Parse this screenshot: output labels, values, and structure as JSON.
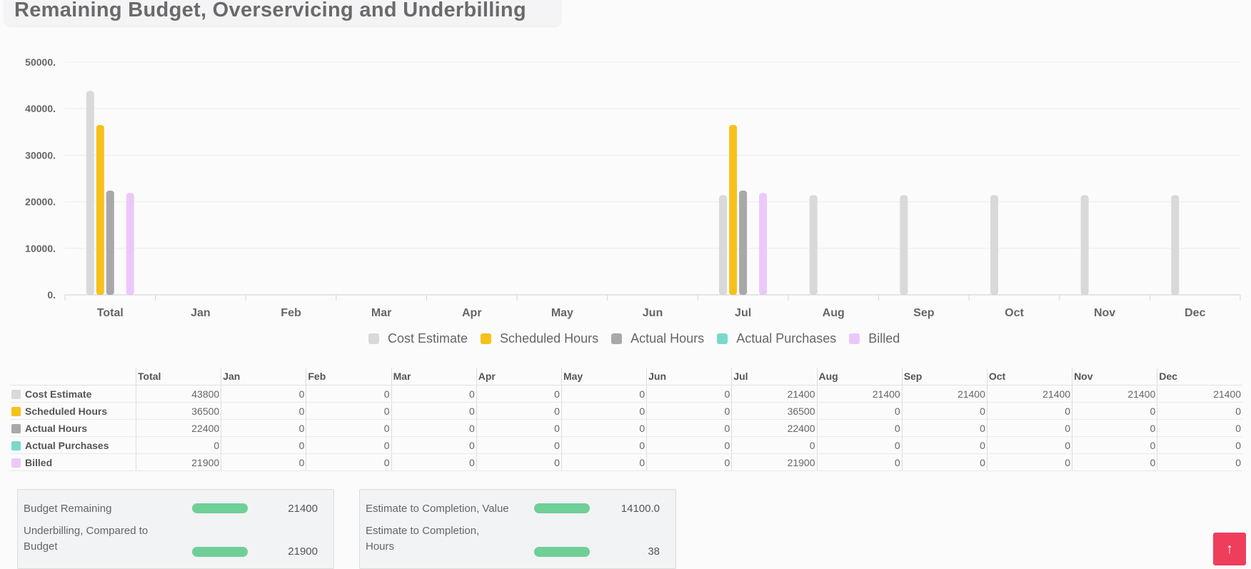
{
  "page": {
    "title": "Remaining Budget, Overservicing and Underbilling"
  },
  "chart_data": {
    "type": "bar",
    "title": "Remaining Budget, Overservicing and Underbilling",
    "categories": [
      "Total",
      "Jan",
      "Feb",
      "Mar",
      "Apr",
      "May",
      "Jun",
      "Jul",
      "Aug",
      "Sep",
      "Oct",
      "Nov",
      "Dec"
    ],
    "ylim": [
      0,
      50000
    ],
    "yticks": [
      0,
      10000,
      20000,
      30000,
      40000,
      50000
    ],
    "ytick_labels": [
      "0.",
      "10000.",
      "20000.",
      "30000.",
      "40000.",
      "50000."
    ],
    "legend_position": "bottom",
    "series": [
      {
        "name": "Cost Estimate",
        "color": "#d9d9d9",
        "values": [
          43800,
          0,
          0,
          0,
          0,
          0,
          0,
          21400,
          21400,
          21400,
          21400,
          21400,
          21400
        ]
      },
      {
        "name": "Scheduled Hours",
        "color": "#f7c11b",
        "values": [
          36500,
          0,
          0,
          0,
          0,
          0,
          0,
          36500,
          0,
          0,
          0,
          0,
          0
        ]
      },
      {
        "name": "Actual Hours",
        "color": "#a8a8a8",
        "values": [
          22400,
          0,
          0,
          0,
          0,
          0,
          0,
          22400,
          0,
          0,
          0,
          0,
          0
        ]
      },
      {
        "name": "Actual Purchases",
        "color": "#7ad9cb",
        "values": [
          0,
          0,
          0,
          0,
          0,
          0,
          0,
          0,
          0,
          0,
          0,
          0,
          0
        ]
      },
      {
        "name": "Billed",
        "color": "#ecc8fa",
        "values": [
          21900,
          0,
          0,
          0,
          0,
          0,
          0,
          21900,
          0,
          0,
          0,
          0,
          0
        ]
      }
    ]
  },
  "table": {
    "headers": [
      "Total",
      "Jan",
      "Feb",
      "Mar",
      "Apr",
      "May",
      "Jun",
      "Jul",
      "Aug",
      "Sep",
      "Oct",
      "Nov",
      "Dec"
    ]
  },
  "kpis": {
    "budget_remaining": {
      "label": "Budget Remaining",
      "value": "21400"
    },
    "underbilling": {
      "label": "Underbilling, Compared to Budget",
      "value": "21900"
    },
    "etc_value": {
      "label": "Estimate to Completion, Value",
      "value": "14100.0"
    },
    "etc_hours": {
      "label": "Estimate to Completion, Hours",
      "value": "38"
    }
  },
  "scroll_top": {
    "icon": "arrow-up-icon",
    "glyph": "↑"
  }
}
